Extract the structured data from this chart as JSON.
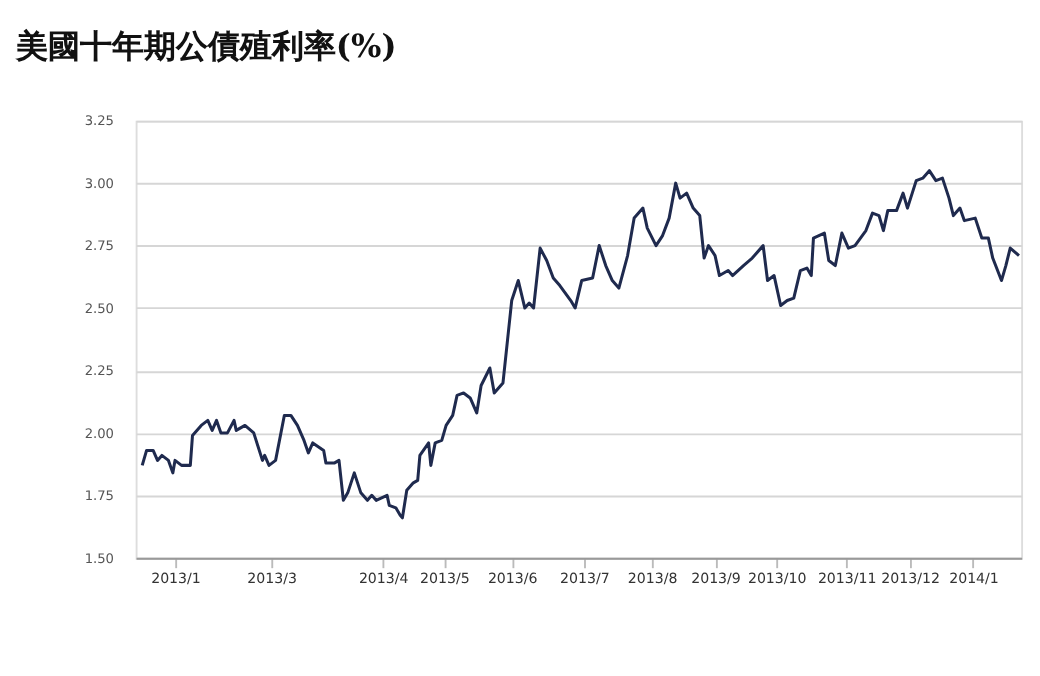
{
  "chart_data": {
    "type": "line",
    "title": "美國十年期公債殖利率(%)",
    "x": [
      "2013-01-02",
      "2013-01-04",
      "2013-01-07",
      "2013-01-09",
      "2013-01-11",
      "2013-01-14",
      "2013-01-16",
      "2013-01-17",
      "2013-01-20",
      "2013-01-24",
      "2013-01-25",
      "2013-01-29",
      "2013-02-01",
      "2013-02-03",
      "2013-02-05",
      "2013-02-07",
      "2013-02-10",
      "2013-02-13",
      "2013-02-14",
      "2013-02-18",
      "2013-02-22",
      "2013-02-26",
      "2013-02-27",
      "2013-03-01",
      "2013-03-04",
      "2013-03-08",
      "2013-03-11",
      "2013-03-14",
      "2013-03-17",
      "2013-03-19",
      "2013-03-21",
      "2013-03-26",
      "2013-03-27",
      "2013-03-31",
      "2013-04-02",
      "2013-04-04",
      "2013-04-06",
      "2013-04-09",
      "2013-04-12",
      "2013-04-15",
      "2013-04-17",
      "2013-04-19",
      "2013-04-24",
      "2013-04-25",
      "2013-04-28",
      "2013-04-30",
      "2013-05-01",
      "2013-05-03",
      "2013-05-06",
      "2013-05-08",
      "2013-05-09",
      "2013-05-13",
      "2013-05-14",
      "2013-05-16",
      "2013-05-19",
      "2013-05-21",
      "2013-05-24",
      "2013-05-26",
      "2013-05-29",
      "2013-06-01",
      "2013-06-04",
      "2013-06-06",
      "2013-06-10",
      "2013-06-12",
      "2013-06-16",
      "2013-06-20",
      "2013-06-23",
      "2013-06-26",
      "2013-06-28",
      "2013-06-30",
      "2013-07-03",
      "2013-07-06",
      "2013-07-09",
      "2013-07-12",
      "2013-07-17",
      "2013-07-19",
      "2013-07-22",
      "2013-07-27",
      "2013-07-30",
      "2013-08-02",
      "2013-08-05",
      "2013-08-08",
      "2013-08-12",
      "2013-08-15",
      "2013-08-19",
      "2013-08-21",
      "2013-08-25",
      "2013-08-28",
      "2013-08-31",
      "2013-09-03",
      "2013-09-05",
      "2013-09-08",
      "2013-09-11",
      "2013-09-14",
      "2013-09-16",
      "2013-09-18",
      "2013-09-21",
      "2013-09-23",
      "2013-09-27",
      "2013-09-29",
      "2013-10-04",
      "2013-10-08",
      "2013-10-13",
      "2013-10-15",
      "2013-10-18",
      "2013-10-21",
      "2013-10-24",
      "2013-10-27",
      "2013-10-30",
      "2013-11-02",
      "2013-11-04",
      "2013-11-05",
      "2013-11-10",
      "2013-11-12",
      "2013-11-15",
      "2013-11-18",
      "2013-11-21",
      "2013-11-24",
      "2013-11-29",
      "2013-12-02",
      "2013-12-05",
      "2013-12-07",
      "2013-12-09",
      "2013-12-13",
      "2013-12-16",
      "2013-12-18",
      "2013-12-22",
      "2013-12-25",
      "2013-12-28",
      "2013-12-31",
      "2014-01-03",
      "2014-01-06",
      "2014-01-08",
      "2014-01-11",
      "2014-01-13",
      "2014-01-18",
      "2014-01-21",
      "2014-01-24",
      "2014-01-26",
      "2014-01-30",
      "2014-02-01",
      "2014-02-03",
      "2014-02-07"
    ],
    "series": [
      {
        "color": "#1f2a4e",
        "values": [
          1.87,
          1.93,
          1.93,
          1.89,
          1.91,
          1.89,
          1.84,
          1.89,
          1.87,
          1.87,
          1.99,
          2.03,
          2.05,
          2.01,
          2.05,
          2.0,
          2.0,
          2.05,
          2.01,
          2.03,
          2.0,
          1.89,
          1.91,
          1.87,
          1.89,
          2.07,
          2.07,
          2.03,
          1.97,
          1.92,
          1.96,
          1.93,
          1.88,
          1.88,
          1.89,
          1.73,
          1.76,
          1.84,
          1.76,
          1.73,
          1.75,
          1.73,
          1.75,
          1.71,
          1.7,
          1.67,
          1.66,
          1.77,
          1.8,
          1.81,
          1.91,
          1.96,
          1.87,
          1.96,
          1.97,
          2.03,
          2.07,
          2.15,
          2.16,
          2.14,
          2.08,
          2.19,
          2.26,
          2.16,
          2.2,
          2.53,
          2.61,
          2.5,
          2.52,
          2.5,
          2.74,
          2.69,
          2.62,
          2.59,
          2.53,
          2.5,
          2.61,
          2.62,
          2.75,
          2.67,
          2.61,
          2.58,
          2.71,
          2.86,
          2.9,
          2.82,
          2.75,
          2.79,
          2.86,
          3.0,
          2.94,
          2.96,
          2.9,
          2.87,
          2.7,
          2.75,
          2.71,
          2.63,
          2.65,
          2.63,
          2.67,
          2.7,
          2.75,
          2.61,
          2.63,
          2.51,
          2.53,
          2.54,
          2.65,
          2.66,
          2.63,
          2.78,
          2.8,
          2.69,
          2.67,
          2.8,
          2.74,
          2.75,
          2.81,
          2.88,
          2.87,
          2.81,
          2.89,
          2.89,
          2.96,
          2.9,
          3.01,
          3.02,
          3.05,
          3.01,
          3.02,
          2.94,
          2.87,
          2.9,
          2.85,
          2.86,
          2.78,
          2.78,
          2.7,
          2.61,
          2.67,
          2.74,
          2.71
        ]
      }
    ],
    "xlim": [
      "2012-12-30",
      "2014-02-08"
    ],
    "xticks": [
      {
        "value": "2013-01-17",
        "label": "2013/1"
      },
      {
        "value": "2013-03-02",
        "label": "2013/3"
      },
      {
        "value": "2013-04-22",
        "label": "2013/4"
      },
      {
        "value": "2013-05-20",
        "label": "2013/5"
      },
      {
        "value": "2013-06-20",
        "label": "2013/6"
      },
      {
        "value": "2013-07-23",
        "label": "2013/7"
      },
      {
        "value": "2013-08-23",
        "label": "2013/8"
      },
      {
        "value": "2013-09-21",
        "label": "2013/9"
      },
      {
        "value": "2013-10-19",
        "label": "2013/10"
      },
      {
        "value": "2013-11-20",
        "label": "2013/11"
      },
      {
        "value": "2013-12-19",
        "label": "2013/12"
      },
      {
        "value": "2014-01-17",
        "label": "2014/1"
      }
    ],
    "ylim": [
      1.5,
      3.25
    ],
    "yticks": [
      {
        "value": 1.5,
        "label": "1.50"
      },
      {
        "value": 1.75,
        "label": "1.75"
      },
      {
        "value": 2.0,
        "label": "2.00"
      },
      {
        "value": 2.25,
        "label": "2.25"
      },
      {
        "value": 2.5,
        "label": "2.50"
      },
      {
        "value": 2.75,
        "label": "2.75"
      },
      {
        "value": 3.0,
        "label": "3.00"
      },
      {
        "value": 3.25,
        "label": "3.25"
      }
    ],
    "grid": "y",
    "legend": false,
    "marker": "none",
    "line_style": "solid"
  }
}
